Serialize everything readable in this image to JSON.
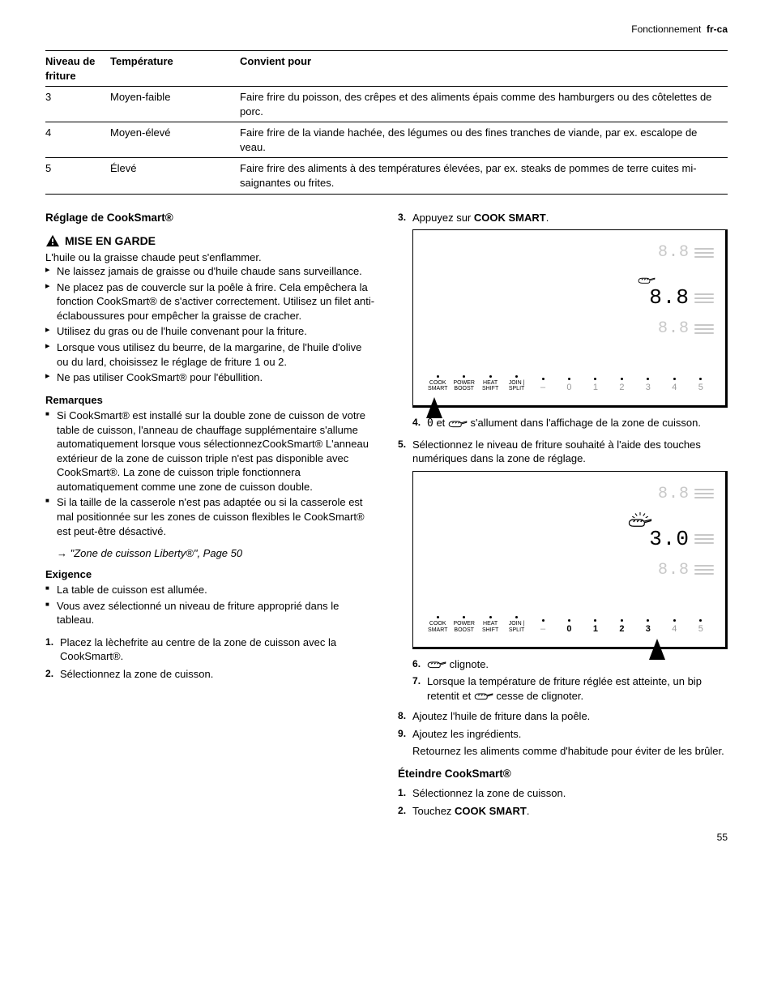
{
  "header": {
    "section": "Fonctionnement",
    "lang": "fr-ca"
  },
  "table": {
    "headers": {
      "level": "Niveau de friture",
      "temp": "Température",
      "for": "Convient pour"
    },
    "rows": [
      {
        "level": "3",
        "temp": "Moyen-faible",
        "for": "Faire frire du poisson, des crêpes et des aliments épais comme des hamburgers ou des côtelettes de porc."
      },
      {
        "level": "4",
        "temp": "Moyen-élevé",
        "for": "Faire frire de la viande hachée, des légumes ou des fines tranches de viande, par ex. escalope de veau."
      },
      {
        "level": "5",
        "temp": "Élevé",
        "for": "Faire frire des aliments à des températures élevées, par ex. steaks de pommes de terre cuites mi-saignantes ou frites."
      }
    ]
  },
  "left": {
    "h1": "Réglage de CookSmart®",
    "warn_title": "MISE EN GARDE",
    "warn_intro": "L'huile ou la graisse chaude peut s'enflammer.",
    "warn_items": [
      "Ne laissez jamais de graisse ou d'huile chaude sans surveillance.",
      "Ne placez pas de couvercle sur la poêle à frire. Cela empêchera la fonction CookSmart® de s'activer correctement. Utilisez un filet anti-éclaboussures pour empêcher la graisse de cracher.",
      "Utilisez du gras ou de l'huile convenant pour la friture.",
      "Lorsque vous utilisez du beurre, de la margarine, de l'huile d'olive ou du lard, choisissez le réglage de friture 1 ou 2.",
      "Ne pas utiliser CookSmart® pour l'ébullition."
    ],
    "notes_head": "Remarques",
    "notes_items": [
      "Si CookSmart® est installé sur la double zone de cuisson de votre table de cuisson, l'anneau de chauffage supplémentaire s'allume automatiquement lorsque vous sélectionnezCookSmart® L'anneau extérieur de la zone de cuisson triple n'est pas disponible avec CookSmart®. La zone de cuisson triple fonctionnera automatiquement comme une zone de cuisson double.",
      "Si la taille de la casserole n'est pas adaptée ou si la casserole est mal positionnée sur les zones de cuisson flexibles le CookSmart® est peut-être désactivé."
    ],
    "notes_ref": "\"Zone de cuisson Liberty®\", Page 50",
    "req_head": "Exigence",
    "req_items": [
      "La table de cuisson est allumée.",
      "Vous avez sélectionné un niveau de friture approprié dans le tableau."
    ],
    "steps_a": [
      "Placez la lèchefrite au centre de la zone de cuisson avec la CookSmart®.",
      "Sélectionnez la zone de cuisson."
    ]
  },
  "right": {
    "step3_pre": "Appuyez sur ",
    "step3_bold": "COOK SMART",
    "step3_post": ".",
    "fig1": {
      "display_main": "8.8",
      "display_dim1": "8.8",
      "display_dim2": "8.8",
      "buttons_text": [
        "COOK\nSMART",
        "POWER\nBOOST",
        "HEAT\nSHIFT",
        "JOIN |\nSPLIT"
      ],
      "dash": "–",
      "nums": [
        "0",
        "1",
        "2",
        "3",
        "4",
        "5"
      ],
      "num_active": [],
      "arrow_index": 0
    },
    "check1_pre": " et ",
    "check1_post": " s'allument dans l'affichage de la zone de cuisson.",
    "step4": "Sélectionnez le niveau de friture souhaité à l'aide des touches numériques dans la zone de réglage.",
    "fig2": {
      "display_main": "3.0",
      "display_dim1": "8.8",
      "display_dim2": "8.8",
      "buttons_text": [
        "COOK\nSMART",
        "POWER\nBOOST",
        "HEAT\nSHIFT",
        "JOIN |\nSPLIT"
      ],
      "dash": "–",
      "nums": [
        "0",
        "1",
        "2",
        "3",
        "4",
        "5"
      ],
      "num_active": [
        0,
        1,
        2,
        3
      ],
      "arrow_index": 8
    },
    "check2_items": [
      " clignote.",
      "Lorsque la température de friture réglée est atteinte, un bip retentit et ",
      " cesse de clignoter."
    ],
    "step5": "Ajoutez l'huile de friture dans la poêle.",
    "step6": "Ajoutez les ingrédients.",
    "step6_sub": "Retournez les aliments comme d'habitude pour éviter de les brûler.",
    "off_head": "Éteindre CookSmart®",
    "off_steps": [
      "Sélectionnez la zone de cuisson.",
      "Touchez "
    ],
    "off_step2_bold": "COOK SMART",
    "off_step2_post": "."
  },
  "page": "55",
  "colors": {
    "text": "#000000",
    "dim": "#c8c8c8",
    "figure_border": "#000000"
  }
}
